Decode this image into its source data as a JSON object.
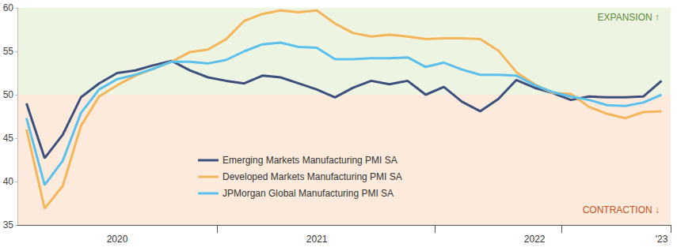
{
  "chart_data": {
    "type": "line",
    "categories": [
      null,
      null,
      null,
      null,
      null,
      "2020",
      null,
      null,
      null,
      null,
      null,
      null,
      null,
      null,
      null,
      null,
      "2021",
      null,
      null,
      null,
      null,
      null,
      null,
      null,
      null,
      null,
      null,
      null,
      "2022",
      null,
      null,
      null,
      null,
      null,
      null,
      "'23"
    ],
    "series": [
      {
        "name": "Emerging Markets Manufacturing PMI SA",
        "color": "#3d4f7c",
        "values": [
          49.0,
          42.7,
          45.4,
          49.7,
          51.3,
          52.5,
          52.8,
          53.4,
          53.9,
          52.8,
          52.0,
          51.6,
          51.3,
          52.2,
          52.0,
          51.3,
          50.6,
          49.7,
          50.8,
          51.6,
          51.2,
          51.6,
          50.0,
          50.9,
          49.2,
          48.1,
          49.5,
          51.7,
          50.8,
          50.2,
          49.4,
          49.8,
          49.7,
          49.7,
          49.8,
          51.6
        ]
      },
      {
        "name": "Developed Markets Manufacturing PMI SA",
        "color": "#f5b55a",
        "values": [
          46.0,
          36.9,
          39.5,
          46.4,
          49.8,
          51.1,
          52.2,
          53.0,
          53.8,
          54.9,
          55.2,
          56.4,
          58.5,
          59.3,
          59.7,
          59.5,
          59.7,
          58.2,
          57.1,
          56.7,
          56.9,
          56.7,
          56.4,
          56.5,
          56.5,
          56.4,
          55.1,
          52.6,
          51.2,
          50.2,
          50.1,
          48.6,
          47.8,
          47.3,
          48.0,
          48.1
        ]
      },
      {
        "name": "JPMorgan Global Manufacturing PMI SA",
        "color": "#5bc0eb",
        "values": [
          47.3,
          39.6,
          42.4,
          47.9,
          50.6,
          51.8,
          52.3,
          53.0,
          53.8,
          53.8,
          53.6,
          54.0,
          55.0,
          55.8,
          56.0,
          55.5,
          55.4,
          54.1,
          54.1,
          54.2,
          54.2,
          54.3,
          53.2,
          53.7,
          52.9,
          52.3,
          52.3,
          52.2,
          51.1,
          50.3,
          49.8,
          49.4,
          48.8,
          48.7,
          49.1,
          50.0
        ]
      }
    ],
    "ylim": [
      35,
      60
    ],
    "yticks": [
      35,
      40,
      45,
      50,
      55,
      60
    ],
    "grid": false,
    "legend": "lower center",
    "annotations": [
      {
        "text": "EXPANSION ↑",
        "range": [
          50,
          60
        ],
        "color": "#eef4e2"
      },
      {
        "text": "CONTRACTION ↓",
        "range": [
          35,
          50
        ],
        "color": "#fcebdc"
      }
    ]
  }
}
